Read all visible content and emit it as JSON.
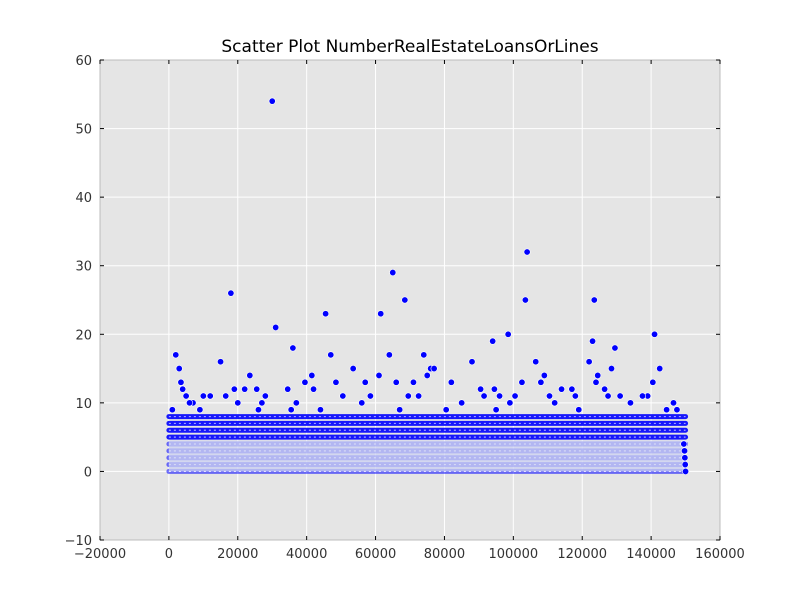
{
  "chart_data": {
    "type": "scatter",
    "title": "Scatter Plot NumberRealEstateLoansOrLines",
    "xlabel": "",
    "ylabel": "",
    "xlim": [
      -20000,
      160000
    ],
    "ylim": [
      -10,
      60
    ],
    "x_ticks": [
      -20000,
      0,
      20000,
      40000,
      60000,
      80000,
      100000,
      120000,
      140000,
      160000
    ],
    "x_tick_labels": [
      "−20000",
      "0",
      "20000",
      "40000",
      "60000",
      "80000",
      "100000",
      "120000",
      "140000",
      "160000"
    ],
    "y_ticks": [
      -10,
      0,
      10,
      20,
      30,
      40,
      50,
      60
    ],
    "y_tick_labels": [
      "−10",
      "0",
      "10",
      "20",
      "30",
      "40",
      "50",
      "60"
    ],
    "grid": true,
    "legend": "none",
    "colors": {
      "plot_background": "#e5e5e5",
      "grid": "#ffffff",
      "marker": "#0000ff",
      "marker_edge": "#ffffff"
    },
    "dense_band": {
      "x_range": [
        0,
        150000
      ],
      "y_values": [
        0,
        1,
        2,
        3,
        4,
        5,
        6,
        7,
        8
      ]
    },
    "points": [
      [
        30000,
        54
      ],
      [
        104000,
        32
      ],
      [
        65000,
        29
      ],
      [
        18000,
        26
      ],
      [
        103500,
        25
      ],
      [
        68500,
        25
      ],
      [
        123500,
        25
      ],
      [
        31000,
        21
      ],
      [
        45500,
        23
      ],
      [
        61500,
        23
      ],
      [
        98500,
        20
      ],
      [
        141000,
        20
      ],
      [
        94000,
        19
      ],
      [
        123000,
        19
      ],
      [
        36000,
        18
      ],
      [
        129500,
        18
      ],
      [
        2000,
        17
      ],
      [
        47000,
        17
      ],
      [
        64000,
        17
      ],
      [
        74000,
        17
      ],
      [
        15000,
        16
      ],
      [
        88000,
        16
      ],
      [
        106500,
        16
      ],
      [
        122000,
        16
      ],
      [
        3000,
        15
      ],
      [
        53500,
        15
      ],
      [
        76000,
        15
      ],
      [
        77000,
        15
      ],
      [
        128500,
        15
      ],
      [
        142500,
        15
      ],
      [
        23500,
        14
      ],
      [
        41500,
        14
      ],
      [
        61000,
        14
      ],
      [
        75000,
        14
      ],
      [
        109000,
        14
      ],
      [
        124500,
        14
      ],
      [
        4000,
        12
      ],
      [
        19000,
        12
      ],
      [
        22000,
        12
      ],
      [
        25500,
        12
      ],
      [
        34500,
        12
      ],
      [
        90500,
        12
      ],
      [
        94500,
        12
      ],
      [
        114000,
        12
      ],
      [
        117000,
        12
      ],
      [
        126500,
        12
      ],
      [
        5000,
        11
      ],
      [
        12000,
        11
      ],
      [
        28000,
        11
      ],
      [
        50500,
        11
      ],
      [
        72500,
        11
      ],
      [
        100500,
        11
      ],
      [
        131000,
        11
      ],
      [
        139000,
        11
      ],
      [
        7000,
        10
      ],
      [
        20000,
        10
      ],
      [
        37000,
        10
      ],
      [
        56000,
        10
      ],
      [
        85000,
        10
      ],
      [
        99000,
        10
      ],
      [
        112000,
        10
      ],
      [
        134000,
        10
      ],
      [
        146500,
        10
      ],
      [
        9000,
        9
      ],
      [
        26000,
        9
      ],
      [
        44000,
        9
      ],
      [
        67000,
        9
      ],
      [
        95000,
        9
      ],
      [
        119000,
        9
      ],
      [
        147500,
        9
      ],
      [
        3500,
        13
      ],
      [
        39500,
        13
      ],
      [
        48500,
        13
      ],
      [
        57000,
        13
      ],
      [
        66000,
        13
      ],
      [
        71000,
        13
      ],
      [
        82000,
        13
      ],
      [
        102500,
        13
      ],
      [
        108000,
        13
      ],
      [
        124000,
        13
      ],
      [
        140500,
        13
      ],
      [
        1000,
        9
      ],
      [
        6000,
        10
      ],
      [
        10000,
        11
      ],
      [
        16500,
        11
      ],
      [
        27000,
        10
      ],
      [
        35500,
        9
      ],
      [
        42000,
        12
      ],
      [
        58500,
        11
      ],
      [
        69500,
        11
      ],
      [
        80500,
        9
      ],
      [
        91500,
        11
      ],
      [
        96000,
        11
      ],
      [
        110500,
        11
      ],
      [
        118000,
        11
      ],
      [
        127500,
        11
      ],
      [
        137500,
        11
      ],
      [
        144500,
        9
      ],
      [
        149500,
        4
      ],
      [
        149700,
        3
      ],
      [
        149800,
        2
      ],
      [
        150000,
        0
      ],
      [
        149900,
        1
      ]
    ]
  }
}
